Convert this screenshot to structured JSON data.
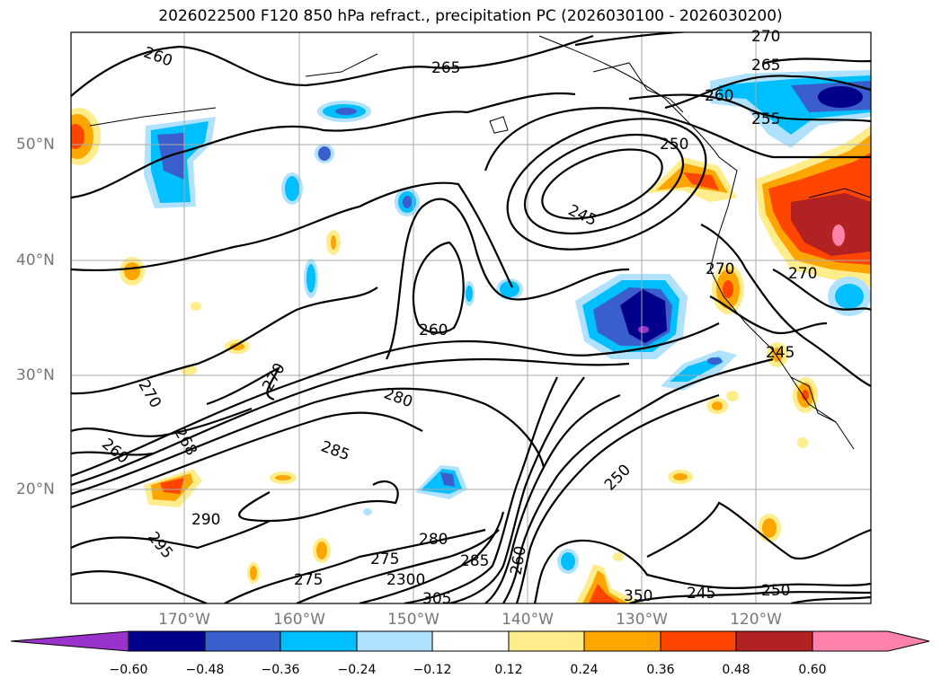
{
  "title": "2026022500 F120 850 hPa refract., precipitation PC (2026030100 - 2026030200)",
  "lat_labels": [
    "50°N",
    "40°N",
    "30°N",
    "20°N"
  ],
  "lon_labels": [
    "170°W",
    "160°W",
    "150°W",
    "140°W",
    "130°W",
    "120°W"
  ],
  "colorbar": {
    "ticks": [
      "−0.60",
      "−0.48",
      "−0.36",
      "−0.24",
      "−0.12",
      "0.12",
      "0.24",
      "0.36",
      "0.48",
      "0.60"
    ],
    "colors": [
      "#9933cc",
      "#00008b",
      "#3a5fcd",
      "#00bfff",
      "#b0e2ff",
      "#ffffff",
      "#ffec8b",
      "#ffa500",
      "#ff4500",
      "#b22222",
      "#ff82ab"
    ]
  },
  "contour_labels": [
    "260",
    "265",
    "270",
    "265",
    "260",
    "255",
    "250",
    "245",
    "260",
    "270",
    "270",
    "245",
    "270",
    "270",
    "280",
    "268",
    "260",
    "285",
    "290",
    "295",
    "275",
    "250",
    "245",
    "250",
    "305",
    "2300",
    "275",
    "280",
    "285",
    "260",
    "350"
  ]
}
